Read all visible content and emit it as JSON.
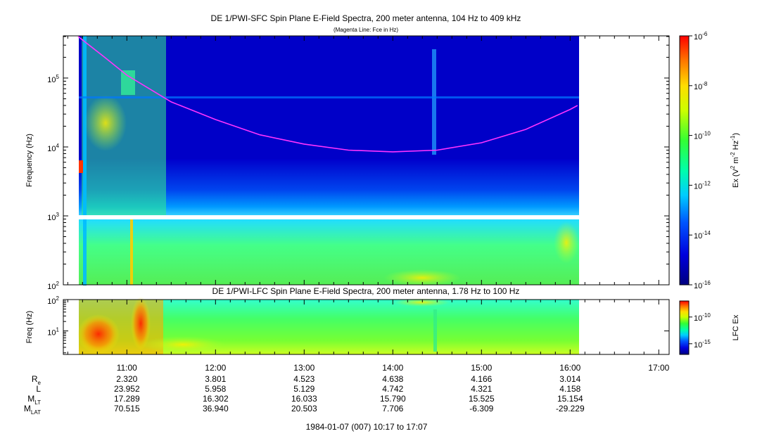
{
  "chart_data": [
    {
      "type": "heatmap",
      "title": "DE 1/PWI-SFC  Spin Plane E-Field Spectra, 200 meter antenna, 104 Hz to 409 kHz",
      "subtitle": "(Magenta Line: Fce in Hz)",
      "ylabel": "Frequency (Hz)",
      "y_scale": "log",
      "ylim": [
        100,
        409000
      ],
      "y_ticks": [
        {
          "value": 100,
          "mant": "10",
          "exp": "2"
        },
        {
          "value": 1000,
          "mant": "10",
          "exp": "3"
        },
        {
          "value": 10000,
          "mant": "10",
          "exp": "4"
        },
        {
          "value": 100000,
          "mant": "10",
          "exp": "5"
        }
      ],
      "colorbar": {
        "label_parts": {
          "a": "Ex (V",
          "b": "2",
          "c": " m",
          "d": "-2",
          "e": " Hz",
          "f": "-1",
          "g": ")"
        },
        "scale": "log",
        "range": [
          1e-16,
          1e-06
        ],
        "ticks": [
          {
            "value": 1e-06,
            "mant": "10",
            "exp": "-6"
          },
          {
            "value": 1e-08,
            "mant": "10",
            "exp": "-8"
          },
          {
            "value": 1e-10,
            "mant": "10",
            "exp": "-10"
          },
          {
            "value": 1e-12,
            "mant": "10",
            "exp": "-12"
          },
          {
            "value": 1e-14,
            "mant": "10",
            "exp": "-14"
          },
          {
            "value": 1e-16,
            "mant": "10",
            "exp": "-16"
          }
        ]
      },
      "fce_line": {
        "color": "#ff33ff",
        "points": [
          {
            "t": "10:27",
            "f": 400000
          },
          {
            "t": "10:45",
            "f": 200000
          },
          {
            "t": "11:00",
            "f": 110000
          },
          {
            "t": "11:30",
            "f": 45000
          },
          {
            "t": "12:00",
            "f": 25000
          },
          {
            "t": "12:30",
            "f": 15000
          },
          {
            "t": "13:00",
            "f": 11000
          },
          {
            "t": "13:30",
            "f": 9000
          },
          {
            "t": "14:00",
            "f": 8500
          },
          {
            "t": "14:30",
            "f": 9000
          },
          {
            "t": "15:00",
            "f": 11500
          },
          {
            "t": "15:30",
            "f": 18000
          },
          {
            "t": "16:00",
            "f": 35000
          },
          {
            "t": "16:05",
            "f": 40000
          }
        ]
      },
      "data_coverage": {
        "start": "10:27",
        "end": "16:05",
        "gap_hz": [
          900,
          1100
        ]
      }
    },
    {
      "type": "heatmap",
      "title": "DE 1/PWI-LFC  Spin Plane E-Field Spectra, 200 meter antenna, 1.78 Hz to 100 Hz",
      "ylabel": "Freq (Hz)",
      "y_scale": "log",
      "ylim": [
        1.78,
        100
      ],
      "y_ticks": [
        {
          "value": 100,
          "mant": "10",
          "exp": "2"
        },
        {
          "value": 10,
          "mant": "10",
          "exp": "1"
        }
      ],
      "colorbar": {
        "label": "LFC Ex",
        "scale": "log",
        "ticks": [
          {
            "value": 1e-10,
            "mant": "10",
            "exp": "-10"
          },
          {
            "value": 1e-15,
            "mant": "10",
            "exp": "-15"
          }
        ]
      }
    }
  ],
  "time_axis": {
    "start": "10:17",
    "end": "17:07",
    "labels": [
      "11:00",
      "12:00",
      "13:00",
      "14:00",
      "15:00",
      "16:00",
      "17:00"
    ]
  },
  "ephemeris": {
    "rows": [
      {
        "main": "R",
        "sub": "e",
        "values": [
          "2.320",
          "3.801",
          "4.523",
          "4.638",
          "4.166",
          "3.014"
        ]
      },
      {
        "main": "L",
        "sub": "",
        "values": [
          "23.952",
          "5.958",
          "5.129",
          "4.742",
          "4.321",
          "4.158"
        ]
      },
      {
        "main": "M",
        "sub": "LT",
        "values": [
          "17.289",
          "16.302",
          "16.033",
          "15.790",
          "15.525",
          "15.154"
        ]
      },
      {
        "main": "M",
        "sub": "LAT",
        "values": [
          "70.515",
          "36.940",
          "20.503",
          "7.706",
          "-6.309",
          "-29.229"
        ]
      }
    ]
  },
  "footer": "1984-01-07 (007) 10:17 to 17:07"
}
